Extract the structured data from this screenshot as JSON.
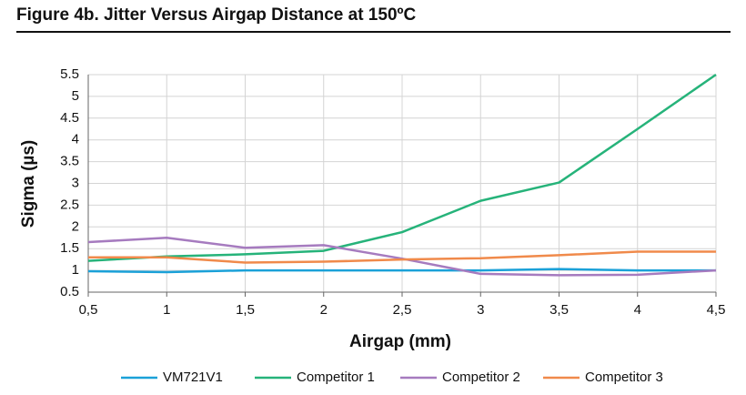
{
  "chart_data": {
    "type": "line",
    "title": "Figure 4b. Jitter Versus Airgap Distance at 150ºC",
    "x_label": "Airgap (mm)",
    "y_label": "Sigma (µs)",
    "x": [
      0.5,
      1,
      1.5,
      2,
      2.5,
      3,
      3.5,
      4,
      4.5
    ],
    "xlim": [
      0.5,
      4.5
    ],
    "xticks": [
      {
        "value": 0.5,
        "label": "0,5"
      },
      1,
      {
        "value": 1.5,
        "label": "1,5"
      },
      2,
      {
        "value": 2.5,
        "label": "2,5"
      },
      3,
      {
        "value": 3.5,
        "label": "3,5"
      },
      4,
      {
        "value": 4.5,
        "label": "4,5"
      }
    ],
    "ylim": [
      0.5,
      5.5
    ],
    "yticks": [
      0.5,
      1,
      1.5,
      2,
      2.5,
      3,
      3.5,
      4,
      4.5,
      5,
      5.5
    ],
    "grid": true,
    "legend": "bottom",
    "series": [
      {
        "name": "VM721V1",
        "color": "#1ba1d8",
        "values": [
          0.98,
          0.96,
          1.0,
          1.0,
          1.0,
          1.0,
          1.03,
          1.0,
          1.0
        ]
      },
      {
        "name": "Competitor 1",
        "color": "#26b37a",
        "values": [
          1.22,
          1.32,
          1.37,
          1.45,
          1.88,
          2.6,
          3.02,
          4.25,
          5.5
        ]
      },
      {
        "name": "Competitor 2",
        "color": "#a67bbf",
        "values": [
          1.65,
          1.75,
          1.52,
          1.58,
          1.27,
          0.92,
          0.89,
          0.9,
          1.0
        ]
      },
      {
        "name": "Competitor 3",
        "color": "#f08a4b",
        "values": [
          1.3,
          1.3,
          1.18,
          1.2,
          1.25,
          1.28,
          1.35,
          1.43,
          1.43
        ]
      }
    ]
  }
}
